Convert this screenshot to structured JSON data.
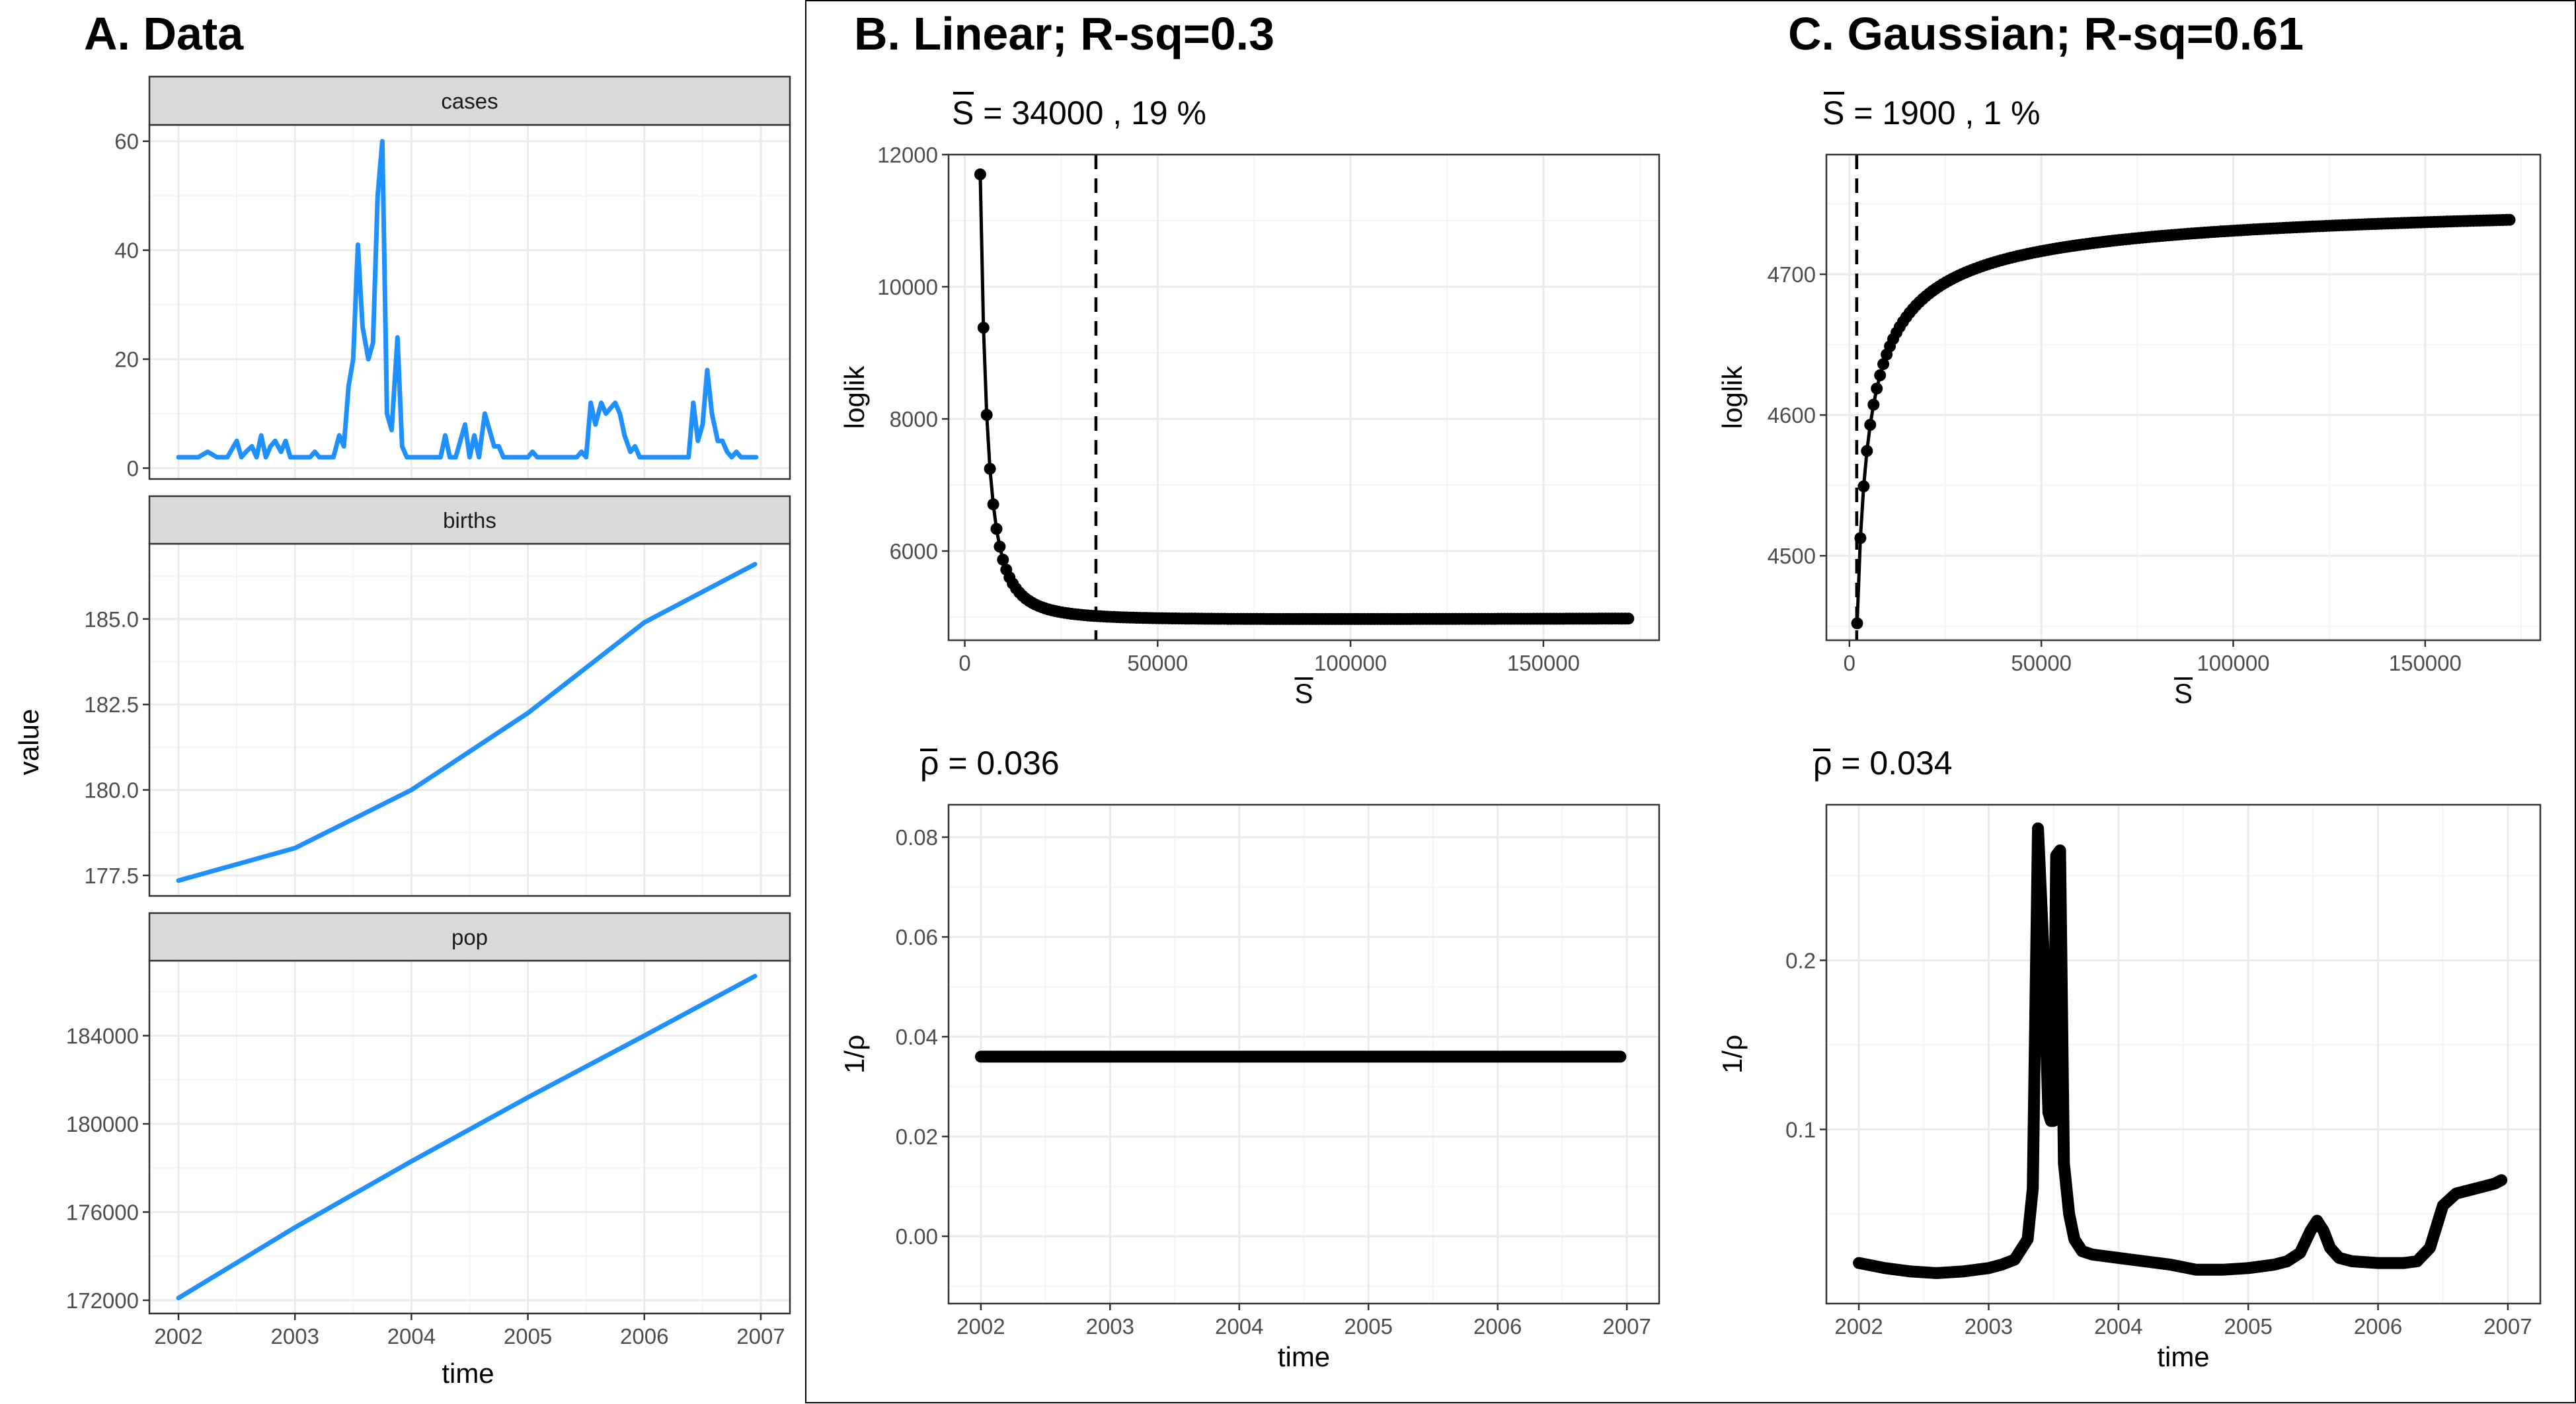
{
  "colors": {
    "series_blue": "#1E90FF",
    "panel_border": "#333333",
    "grid_major": "#EBEBEB",
    "grid_minor": "#F5F5F5",
    "strip_bg": "#D9D9D9",
    "tick_label": "#4D4D4D",
    "mark_black": "#000000"
  },
  "texts": {
    "panel_a_title": "A. Data",
    "panel_b_title": "B. Linear; R-sq=0.3",
    "panel_c_title": "C. Gaussian; R-sq=0.61",
    "a_ylabel": "value",
    "a_xlabel": "time",
    "b_top_sub_sym": "S",
    "b_top_sub_rest": " = 34000 , 19 %",
    "c_top_sub_sym": "S",
    "c_top_sub_rest": " = 1900 , 1 %",
    "b_bot_sub_sym": "ρ",
    "b_bot_sub_rest": " = 0.036",
    "c_bot_sub_sym": "ρ",
    "c_bot_sub_rest": " = 0.034",
    "loglik_label": "loglik",
    "sbar_label": "S",
    "rho_label": "1/ρ",
    "time_label": "time"
  },
  "chart_data": [
    {
      "type": "line",
      "id": "a_cases",
      "strip": "cases",
      "xlim": [
        2001.75,
        2007.25
      ],
      "ylim": [
        -2,
        63
      ],
      "x_ticks": [
        2002,
        2003,
        2004,
        2005,
        2006,
        2007
      ],
      "y_ticks": [
        0,
        20,
        40,
        60
      ],
      "y_tick_labels": [
        "0",
        "20",
        "40",
        "60"
      ],
      "series": [
        {
          "x": [
            2002.0,
            2002.08,
            2002.17,
            2002.25,
            2002.33,
            2002.42,
            2002.5,
            2002.54,
            2002.58,
            2002.63,
            2002.67,
            2002.71,
            2002.75,
            2002.79,
            2002.83,
            2002.88,
            2002.92,
            2002.96,
            2003.0,
            2003.04,
            2003.08,
            2003.13,
            2003.17,
            2003.21,
            2003.25,
            2003.29,
            2003.33,
            2003.38,
            2003.42,
            2003.46,
            2003.5,
            2003.54,
            2003.58,
            2003.63,
            2003.67,
            2003.71,
            2003.75,
            2003.79,
            2003.83,
            2003.88,
            2003.92,
            2003.96,
            2004.0,
            2004.25,
            2004.29,
            2004.33,
            2004.38,
            2004.42,
            2004.46,
            2004.5,
            2004.54,
            2004.58,
            2004.63,
            2004.67,
            2004.71,
            2004.75,
            2004.79,
            2004.83,
            2004.88,
            2004.92,
            2004.96,
            2005.0,
            2005.04,
            2005.08,
            2005.13,
            2005.17,
            2005.21,
            2005.25,
            2005.29,
            2005.33,
            2005.38,
            2005.42,
            2005.46,
            2005.5,
            2005.54,
            2005.58,
            2005.63,
            2005.67,
            2005.71,
            2005.75,
            2005.79,
            2005.83,
            2005.88,
            2005.92,
            2005.96,
            2006.0,
            2006.25,
            2006.38,
            2006.42,
            2006.46,
            2006.5,
            2006.54,
            2006.58,
            2006.63,
            2006.67,
            2006.71,
            2006.75,
            2006.79,
            2006.83,
            2006.88,
            2006.96
          ],
          "y": [
            2,
            2,
            2,
            3,
            2,
            2,
            5,
            2,
            3,
            4,
            2,
            6,
            2,
            4,
            5,
            3,
            5,
            2,
            2,
            2,
            2,
            2,
            3,
            2,
            2,
            2,
            2,
            6,
            4,
            15,
            20,
            41,
            26,
            20,
            23,
            50,
            60,
            10,
            7,
            24,
            4,
            2,
            2,
            2,
            6,
            2,
            2,
            5,
            8,
            2,
            6,
            2,
            10,
            7,
            4,
            4,
            2,
            2,
            2,
            2,
            2,
            2,
            3,
            2,
            2,
            2,
            2,
            2,
            2,
            2,
            2,
            2,
            3,
            2,
            12,
            8,
            12,
            10,
            11,
            12,
            10,
            6,
            3,
            4,
            2,
            2,
            2,
            2,
            12,
            5,
            8,
            18,
            10,
            5,
            5,
            3,
            2,
            3,
            2,
            2,
            2
          ]
        }
      ]
    },
    {
      "type": "line",
      "id": "a_births",
      "strip": "births",
      "xlim": [
        2001.75,
        2007.25
      ],
      "ylim": [
        176.9,
        187.2
      ],
      "x_ticks": [
        2002,
        2003,
        2004,
        2005,
        2006,
        2007
      ],
      "y_ticks": [
        177.5,
        180.0,
        182.5,
        185.0
      ],
      "y_tick_labels": [
        "177.5",
        "180.0",
        "182.5",
        "185.0"
      ],
      "series": [
        {
          "x": [
            2002.0,
            2003.0,
            2004.0,
            2005.0,
            2006.0,
            2006.95
          ],
          "y": [
            177.35,
            178.3,
            180.0,
            182.25,
            184.9,
            186.6
          ]
        }
      ]
    },
    {
      "type": "line",
      "id": "a_pop",
      "strip": "pop",
      "xlim": [
        2001.75,
        2007.25
      ],
      "ylim": [
        171400,
        187400
      ],
      "x_ticks": [
        2002,
        2003,
        2004,
        2005,
        2006,
        2007
      ],
      "y_ticks": [
        172000,
        176000,
        180000,
        184000
      ],
      "y_tick_labels": [
        "172000",
        "176000",
        "180000",
        "184000"
      ],
      "series": [
        {
          "x": [
            2002.0,
            2003.0,
            2004.0,
            2005.0,
            2006.0,
            2006.95
          ],
          "y": [
            172100,
            175300,
            178300,
            181200,
            184000,
            186700
          ]
        }
      ]
    },
    {
      "type": "line",
      "id": "b_loglik",
      "xlim": [
        -4200,
        180000
      ],
      "ylim": [
        4650,
        12000
      ],
      "x_ticks": [
        0,
        50000,
        100000,
        150000
      ],
      "x_tick_labels": [
        "0",
        "50000",
        "100000",
        "150000"
      ],
      "y_ticks": [
        6000,
        8000,
        10000,
        12000
      ],
      "y_tick_labels": [
        "6000",
        "8000",
        "10000",
        "12000"
      ],
      "vline": 34000,
      "curve": {
        "x_start": 4000,
        "x_end": 172000,
        "n": 200,
        "formula": "ll_linear"
      }
    },
    {
      "type": "line",
      "id": "c_loglik",
      "xlim": [
        -6000,
        180000
      ],
      "ylim": [
        4440,
        4785
      ],
      "x_ticks": [
        0,
        50000,
        100000,
        150000
      ],
      "x_tick_labels": [
        "0",
        "50000",
        "100000",
        "150000"
      ],
      "y_ticks": [
        4500,
        4600,
        4700
      ],
      "y_tick_labels": [
        "4500",
        "4600",
        "4700"
      ],
      "vline": 1900,
      "curve": {
        "x_start": 2000,
        "x_end": 172000,
        "n": 200,
        "formula": "ll_gauss"
      }
    },
    {
      "type": "line",
      "id": "b_rho",
      "xlim": [
        2001.75,
        2007.25
      ],
      "ylim": [
        -0.0135,
        0.0865
      ],
      "x_ticks": [
        2002,
        2003,
        2004,
        2005,
        2006,
        2007
      ],
      "y_ticks": [
        0.0,
        0.02,
        0.04,
        0.06,
        0.08
      ],
      "y_tick_labels": [
        "0.00",
        "0.02",
        "0.04",
        "0.06",
        "0.08"
      ],
      "series": [
        {
          "x": [
            2002.0,
            2006.95
          ],
          "y": [
            0.036,
            0.036
          ]
        }
      ]
    },
    {
      "type": "line",
      "id": "c_rho",
      "xlim": [
        2001.75,
        2007.25
      ],
      "ylim": [
        -0.003,
        0.292
      ],
      "x_ticks": [
        2002,
        2003,
        2004,
        2005,
        2006,
        2007
      ],
      "y_ticks": [
        0.1,
        0.2
      ],
      "y_tick_labels": [
        "0.1",
        "0.2"
      ],
      "series": [
        {
          "x": [
            2002.0,
            2002.2,
            2002.4,
            2002.6,
            2002.8,
            2003.0,
            2003.1,
            2003.2,
            2003.3,
            2003.34,
            2003.38,
            2003.42,
            2003.46,
            2003.48,
            2003.5,
            2003.52,
            2003.55,
            2003.58,
            2003.62,
            2003.66,
            2003.72,
            2003.8,
            2004.0,
            2004.2,
            2004.4,
            2004.6,
            2004.8,
            2005.0,
            2005.2,
            2005.3,
            2005.4,
            2005.48,
            2005.53,
            2005.58,
            2005.63,
            2005.7,
            2005.8,
            2006.0,
            2006.2,
            2006.3,
            2006.4,
            2006.5,
            2006.6,
            2006.7,
            2006.8,
            2006.9,
            2006.95
          ],
          "y": [
            0.021,
            0.018,
            0.016,
            0.015,
            0.016,
            0.018,
            0.02,
            0.023,
            0.035,
            0.065,
            0.278,
            0.21,
            0.11,
            0.105,
            0.105,
            0.262,
            0.265,
            0.08,
            0.05,
            0.035,
            0.028,
            0.026,
            0.024,
            0.022,
            0.02,
            0.017,
            0.017,
            0.018,
            0.02,
            0.022,
            0.027,
            0.04,
            0.046,
            0.04,
            0.03,
            0.024,
            0.022,
            0.021,
            0.021,
            0.022,
            0.03,
            0.055,
            0.062,
            0.064,
            0.066,
            0.068,
            0.07
          ]
        }
      ]
    }
  ]
}
